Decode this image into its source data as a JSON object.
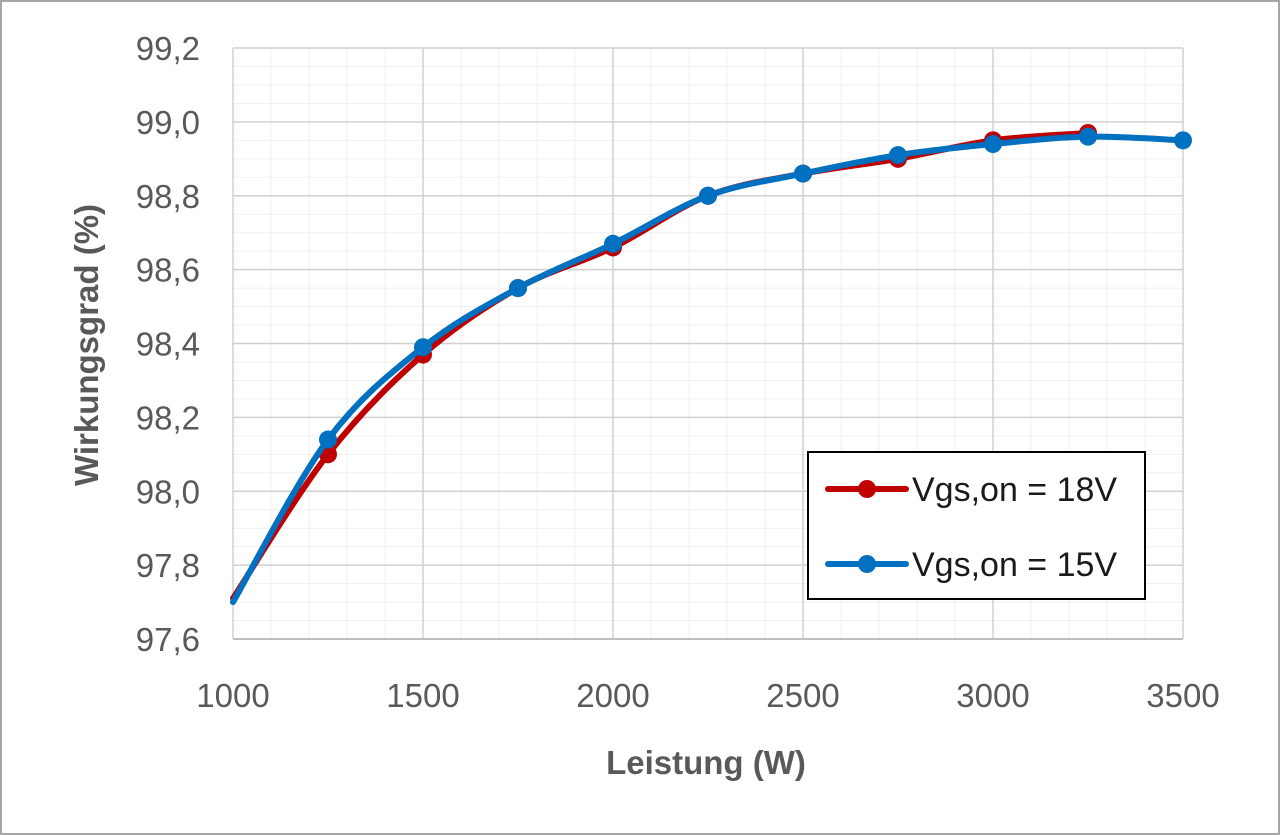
{
  "chart_data": {
    "type": "line",
    "title": "",
    "xlabel": "Leistung (W)",
    "ylabel": "Wirkungsgrad (%)",
    "xlim": [
      1000,
      3500
    ],
    "ylim": [
      97.6,
      99.2
    ],
    "x_ticks": [
      1000,
      1500,
      2000,
      2500,
      3000,
      3500
    ],
    "x_tick_labels": [
      "1000",
      "1500",
      "2000",
      "2500",
      "3000",
      "3500"
    ],
    "y_ticks": [
      97.6,
      97.8,
      98.0,
      98.2,
      98.4,
      98.6,
      98.8,
      99.0,
      99.2
    ],
    "y_tick_labels": [
      "97,6",
      "97,8",
      "98,0",
      "98,2",
      "98,4",
      "98,6",
      "98,8",
      "99,0",
      "99,2"
    ],
    "grid": true,
    "legend_position": "bottom-right",
    "series": [
      {
        "name": "Vgs,on = 18V",
        "color": "#c00000",
        "x": [
          1000,
          1250,
          1500,
          1750,
          2000,
          2250,
          2500,
          2750,
          3000,
          3250
        ],
        "y": [
          97.71,
          98.1,
          98.37,
          98.55,
          98.66,
          98.8,
          98.86,
          98.9,
          98.95,
          98.97
        ]
      },
      {
        "name": "Vgs,on = 15V",
        "color": "#0070c0",
        "x": [
          1000,
          1250,
          1500,
          1750,
          2000,
          2250,
          2500,
          2750,
          3000,
          3250,
          3500
        ],
        "y": [
          97.7,
          98.14,
          98.39,
          98.55,
          98.67,
          98.8,
          98.86,
          98.91,
          98.94,
          98.96,
          98.95
        ]
      }
    ]
  }
}
